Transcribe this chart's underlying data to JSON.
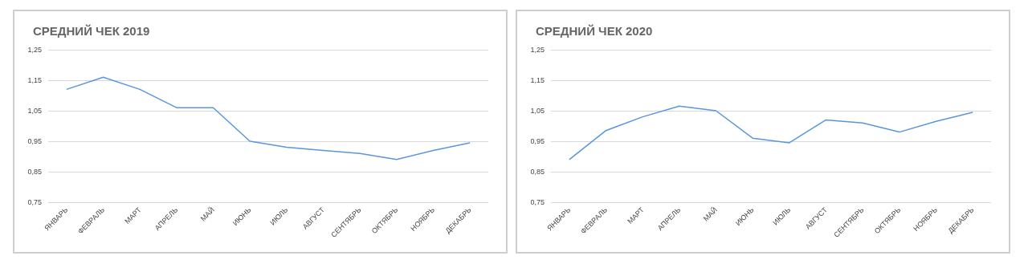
{
  "chart_data": [
    {
      "type": "line",
      "title": "СРЕДНИЙ ЧЕК 2019",
      "categories": [
        "ЯНВАРЬ",
        "ФЕВРАЛЬ",
        "МАРТ",
        "АПРЕЛЬ",
        "МАЙ",
        "ИЮНЬ",
        "ИЮЛЬ",
        "АВГУСТ",
        "СЕНТЯБРЬ",
        "ОКТЯБРЬ",
        "НОЯБРЬ",
        "ДЕКАБРЬ"
      ],
      "series": [
        {
          "color": "#5a96dc",
          "values": [
            1.12,
            1.16,
            1.12,
            1.06,
            1.06,
            0.95,
            0.93,
            0.92,
            0.91,
            0.89,
            0.92,
            0.945
          ]
        }
      ],
      "ylim": [
        0.75,
        1.25
      ],
      "yticks": [
        {
          "value": 0.75,
          "label": "0,75"
        },
        {
          "value": 0.85,
          "label": "0,85"
        },
        {
          "value": 0.95,
          "label": "0,95"
        },
        {
          "value": 1.05,
          "label": "1,05"
        },
        {
          "value": 1.15,
          "label": "1,15"
        },
        {
          "value": 1.25,
          "label": "1,25"
        }
      ],
      "grid": "y",
      "marker": "none",
      "line_style": "solid"
    },
    {
      "type": "line",
      "title": "СРЕДНИЙ ЧЕК 2020",
      "categories": [
        "ЯНВАРЬ",
        "ФЕВРАЛЬ",
        "МАРТ",
        "АПРЕЛЬ",
        "МАЙ",
        "ИЮНЬ",
        "ИЮЛЬ",
        "АВГУСТ",
        "СЕНТЯБРЬ",
        "ОКТЯБРЬ",
        "НОЯБРЬ",
        "ДЕКАБРЬ"
      ],
      "series": [
        {
          "color": "#5a96dc",
          "values": [
            0.89,
            0.985,
            1.03,
            1.065,
            1.05,
            0.96,
            0.945,
            1.02,
            1.01,
            0.98,
            1.015,
            1.045
          ]
        }
      ],
      "ylim": [
        0.75,
        1.25
      ],
      "yticks": [
        {
          "value": 0.75,
          "label": "0,75"
        },
        {
          "value": 0.85,
          "label": "0,85"
        },
        {
          "value": 0.95,
          "label": "0,95"
        },
        {
          "value": 1.05,
          "label": "1,05"
        },
        {
          "value": 1.15,
          "label": "1,15"
        },
        {
          "value": 1.25,
          "label": "1,25"
        }
      ],
      "grid": "y",
      "marker": "none",
      "line_style": "solid"
    }
  ]
}
